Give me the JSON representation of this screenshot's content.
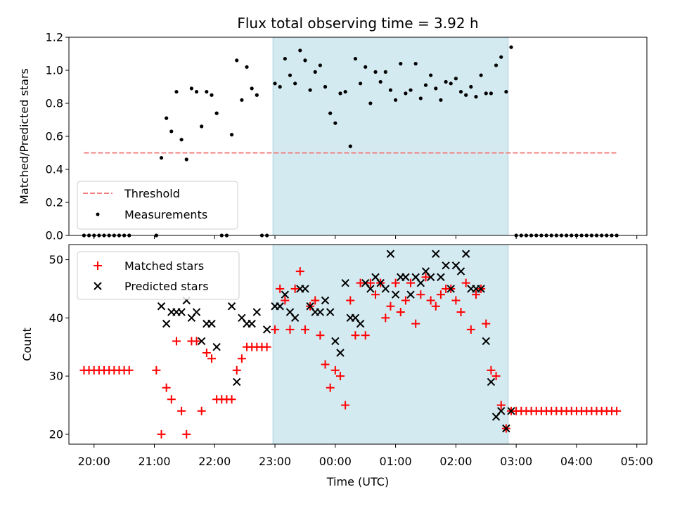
{
  "chart_data": [
    {
      "type": "scatter",
      "title": "Flux total observing time = 3.92 h",
      "ylabel": "Matched/Predicted stars",
      "ylim": [
        0.0,
        1.2
      ],
      "yticks": [
        0.0,
        0.2,
        0.4,
        0.6,
        0.8,
        1.0,
        1.2
      ],
      "ytick_labels": [
        "0.0",
        "0.2",
        "0.4",
        "0.6",
        "0.8",
        "1.0",
        "1.2"
      ],
      "xlim": [
        "19:35",
        "05:10"
      ],
      "grid": false,
      "legend_position": "lower-left",
      "highlight_span": {
        "start": "22:58",
        "end": "02:52",
        "color": "#d4eaf1"
      },
      "threshold": {
        "name": "Threshold",
        "y": 0.5,
        "x": [
          "19:50",
          "04:40"
        ],
        "color": "#f08080",
        "style": "dashed"
      },
      "series": [
        {
          "name": "Measurements",
          "color": "#000000",
          "marker": "dot",
          "x": [
            "19:50",
            "19:55",
            "20:00",
            "20:05",
            "20:10",
            "20:15",
            "20:20",
            "20:25",
            "20:30",
            "20:35",
            "21:02",
            "21:07",
            "21:12",
            "21:17",
            "21:22",
            "21:27",
            "21:32",
            "21:37",
            "21:42",
            "21:47",
            "21:52",
            "21:57",
            "22:02",
            "22:07",
            "22:12",
            "22:17",
            "22:22",
            "22:27",
            "22:32",
            "22:37",
            "22:42",
            "22:47",
            "22:52",
            "23:00",
            "23:05",
            "23:10",
            "23:15",
            "23:20",
            "23:25",
            "23:30",
            "23:35",
            "23:40",
            "23:45",
            "23:50",
            "23:55",
            "00:00",
            "00:05",
            "00:10",
            "00:15",
            "00:20",
            "00:25",
            "00:30",
            "00:35",
            "00:40",
            "00:45",
            "00:50",
            "00:55",
            "01:00",
            "01:05",
            "01:10",
            "01:15",
            "01:20",
            "01:25",
            "01:30",
            "01:35",
            "01:40",
            "01:45",
            "01:50",
            "01:55",
            "02:00",
            "02:05",
            "02:10",
            "02:15",
            "02:20",
            "02:25",
            "02:30",
            "02:35",
            "02:40",
            "02:45",
            "02:50",
            "02:55",
            "03:00",
            "03:05",
            "03:10",
            "03:15",
            "03:20",
            "03:25",
            "03:30",
            "03:35",
            "03:40",
            "03:45",
            "03:50",
            "03:55",
            "04:00",
            "04:05",
            "04:10",
            "04:15",
            "04:20",
            "04:25",
            "04:30",
            "04:35",
            "04:40"
          ],
          "y": [
            0,
            0,
            0,
            0,
            0,
            0,
            0,
            0,
            0,
            0,
            0,
            0.47,
            0.71,
            0.63,
            0.87,
            0.58,
            0.46,
            0.89,
            0.87,
            0.66,
            0.87,
            0.85,
            0.74,
            0,
            0,
            0.61,
            1.06,
            0.82,
            1.02,
            0.89,
            0.85,
            0,
            0,
            0.92,
            0.9,
            1.07,
            0.97,
            0.92,
            1.12,
            1.06,
            0.88,
            0.99,
            1.03,
            0.9,
            0.74,
            0.68,
            0.86,
            0.87,
            0.54,
            1.07,
            0.92,
            1.02,
            0.8,
            0.99,
            0.93,
            0.99,
            0.88,
            0.82,
            1.04,
            0.86,
            0.88,
            1.04,
            0.83,
            0.91,
            0.97,
            0.89,
            0.82,
            0.93,
            0.92,
            0.95,
            0.87,
            0.85,
            0.9,
            0.84,
            0.97,
            0.86,
            0.86,
            1.03,
            1.08,
            0.87,
            1.14,
            0,
            0,
            0,
            0,
            0,
            0,
            0,
            0,
            0,
            0,
            0,
            0,
            0,
            0,
            0,
            0,
            0,
            0,
            0,
            0,
            0
          ]
        }
      ]
    },
    {
      "type": "scatter",
      "xlabel": "Time (UTC)",
      "ylabel": "Count",
      "ylim": [
        18.3,
        52.6
      ],
      "yticks": [
        20,
        30,
        40,
        50
      ],
      "ytick_labels": [
        "20",
        "30",
        "40",
        "50"
      ],
      "xlim": [
        "19:35",
        "05:10"
      ],
      "xtick_labels": [
        "20:00",
        "21:00",
        "22:00",
        "23:00",
        "00:00",
        "01:00",
        "02:00",
        "03:00",
        "04:00",
        "05:00"
      ],
      "grid": false,
      "legend_position": "upper-left",
      "highlight_span": {
        "start": "22:58",
        "end": "02:52",
        "color": "#d4eaf1"
      },
      "series": [
        {
          "name": "Matched stars",
          "color": "#ff0000",
          "marker": "plus",
          "x": [
            "19:50",
            "19:55",
            "20:00",
            "20:05",
            "20:10",
            "20:15",
            "20:20",
            "20:25",
            "20:30",
            "20:35",
            "21:02",
            "21:07",
            "21:12",
            "21:17",
            "21:22",
            "21:27",
            "21:32",
            "21:37",
            "21:42",
            "21:47",
            "21:52",
            "21:57",
            "22:02",
            "22:07",
            "22:12",
            "22:17",
            "22:22",
            "22:27",
            "22:32",
            "22:37",
            "22:42",
            "22:47",
            "22:52",
            "23:00",
            "23:05",
            "23:10",
            "23:15",
            "23:20",
            "23:25",
            "23:30",
            "23:35",
            "23:40",
            "23:45",
            "23:50",
            "23:55",
            "00:00",
            "00:05",
            "00:10",
            "00:15",
            "00:20",
            "00:25",
            "00:30",
            "00:35",
            "00:40",
            "00:45",
            "00:50",
            "00:55",
            "01:00",
            "01:05",
            "01:10",
            "01:15",
            "01:20",
            "01:25",
            "01:30",
            "01:35",
            "01:40",
            "01:45",
            "01:50",
            "01:55",
            "02:00",
            "02:05",
            "02:10",
            "02:15",
            "02:20",
            "02:25",
            "02:30",
            "02:35",
            "02:40",
            "02:45",
            "02:50",
            "02:55",
            "03:00",
            "03:05",
            "03:10",
            "03:15",
            "03:20",
            "03:25",
            "03:30",
            "03:35",
            "03:40",
            "03:45",
            "03:50",
            "03:55",
            "04:00",
            "04:05",
            "04:10",
            "04:15",
            "04:20",
            "04:25",
            "04:30",
            "04:35",
            "04:40"
          ],
          "y": [
            31,
            31,
            31,
            31,
            31,
            31,
            31,
            31,
            31,
            31,
            31,
            20,
            28,
            26,
            36,
            24,
            20,
            36,
            36,
            24,
            34,
            33,
            26,
            26,
            26,
            26,
            31,
            33,
            35,
            35,
            35,
            35,
            35,
            38,
            45,
            43,
            38,
            45,
            48,
            38,
            42,
            43,
            37,
            32,
            28,
            31,
            30,
            25,
            43,
            37,
            46,
            37,
            46,
            44,
            46,
            40,
            42,
            46,
            41,
            43,
            46,
            39,
            44,
            47,
            43,
            42,
            44,
            45,
            45,
            43,
            41,
            46,
            38,
            44,
            45,
            39,
            31,
            30,
            25,
            21,
            24,
            24,
            24,
            24,
            24,
            24,
            24,
            24,
            24,
            24,
            24,
            24,
            24,
            24,
            24,
            24,
            24,
            24,
            24,
            24,
            24,
            24
          ]
        },
        {
          "name": "Predicted stars",
          "color": "#000000",
          "marker": "x",
          "x": [
            "21:07",
            "21:12",
            "21:17",
            "21:22",
            "21:27",
            "21:32",
            "21:37",
            "21:42",
            "21:47",
            "21:52",
            "21:57",
            "22:02",
            "22:17",
            "22:22",
            "22:27",
            "22:32",
            "22:37",
            "22:42",
            "22:52",
            "23:00",
            "23:05",
            "23:10",
            "23:15",
            "23:20",
            "23:25",
            "23:30",
            "23:35",
            "23:40",
            "23:45",
            "23:50",
            "23:55",
            "00:00",
            "00:05",
            "00:10",
            "00:15",
            "00:20",
            "00:25",
            "00:30",
            "00:35",
            "00:40",
            "00:45",
            "00:50",
            "00:55",
            "01:00",
            "01:05",
            "01:10",
            "01:15",
            "01:20",
            "01:25",
            "01:30",
            "01:35",
            "01:40",
            "01:45",
            "01:50",
            "01:55",
            "02:00",
            "02:05",
            "02:10",
            "02:15",
            "02:20",
            "02:25",
            "02:30",
            "02:35",
            "02:40",
            "02:45",
            "02:50",
            "02:55"
          ],
          "y": [
            42,
            39,
            41,
            41,
            41,
            43,
            40,
            41,
            36,
            39,
            39,
            35,
            42,
            29,
            40,
            39,
            39,
            41,
            38,
            42,
            42,
            44,
            41,
            40,
            45,
            45,
            42,
            41,
            41,
            43,
            41,
            36,
            34,
            46,
            40,
            40,
            39,
            46,
            45,
            47,
            46,
            45,
            51,
            44,
            47,
            47,
            44,
            47,
            46,
            48,
            47,
            51,
            47,
            49,
            45,
            49,
            48,
            51,
            45,
            45,
            45,
            36,
            29,
            23,
            24,
            21,
            24
          ]
        }
      ]
    }
  ]
}
